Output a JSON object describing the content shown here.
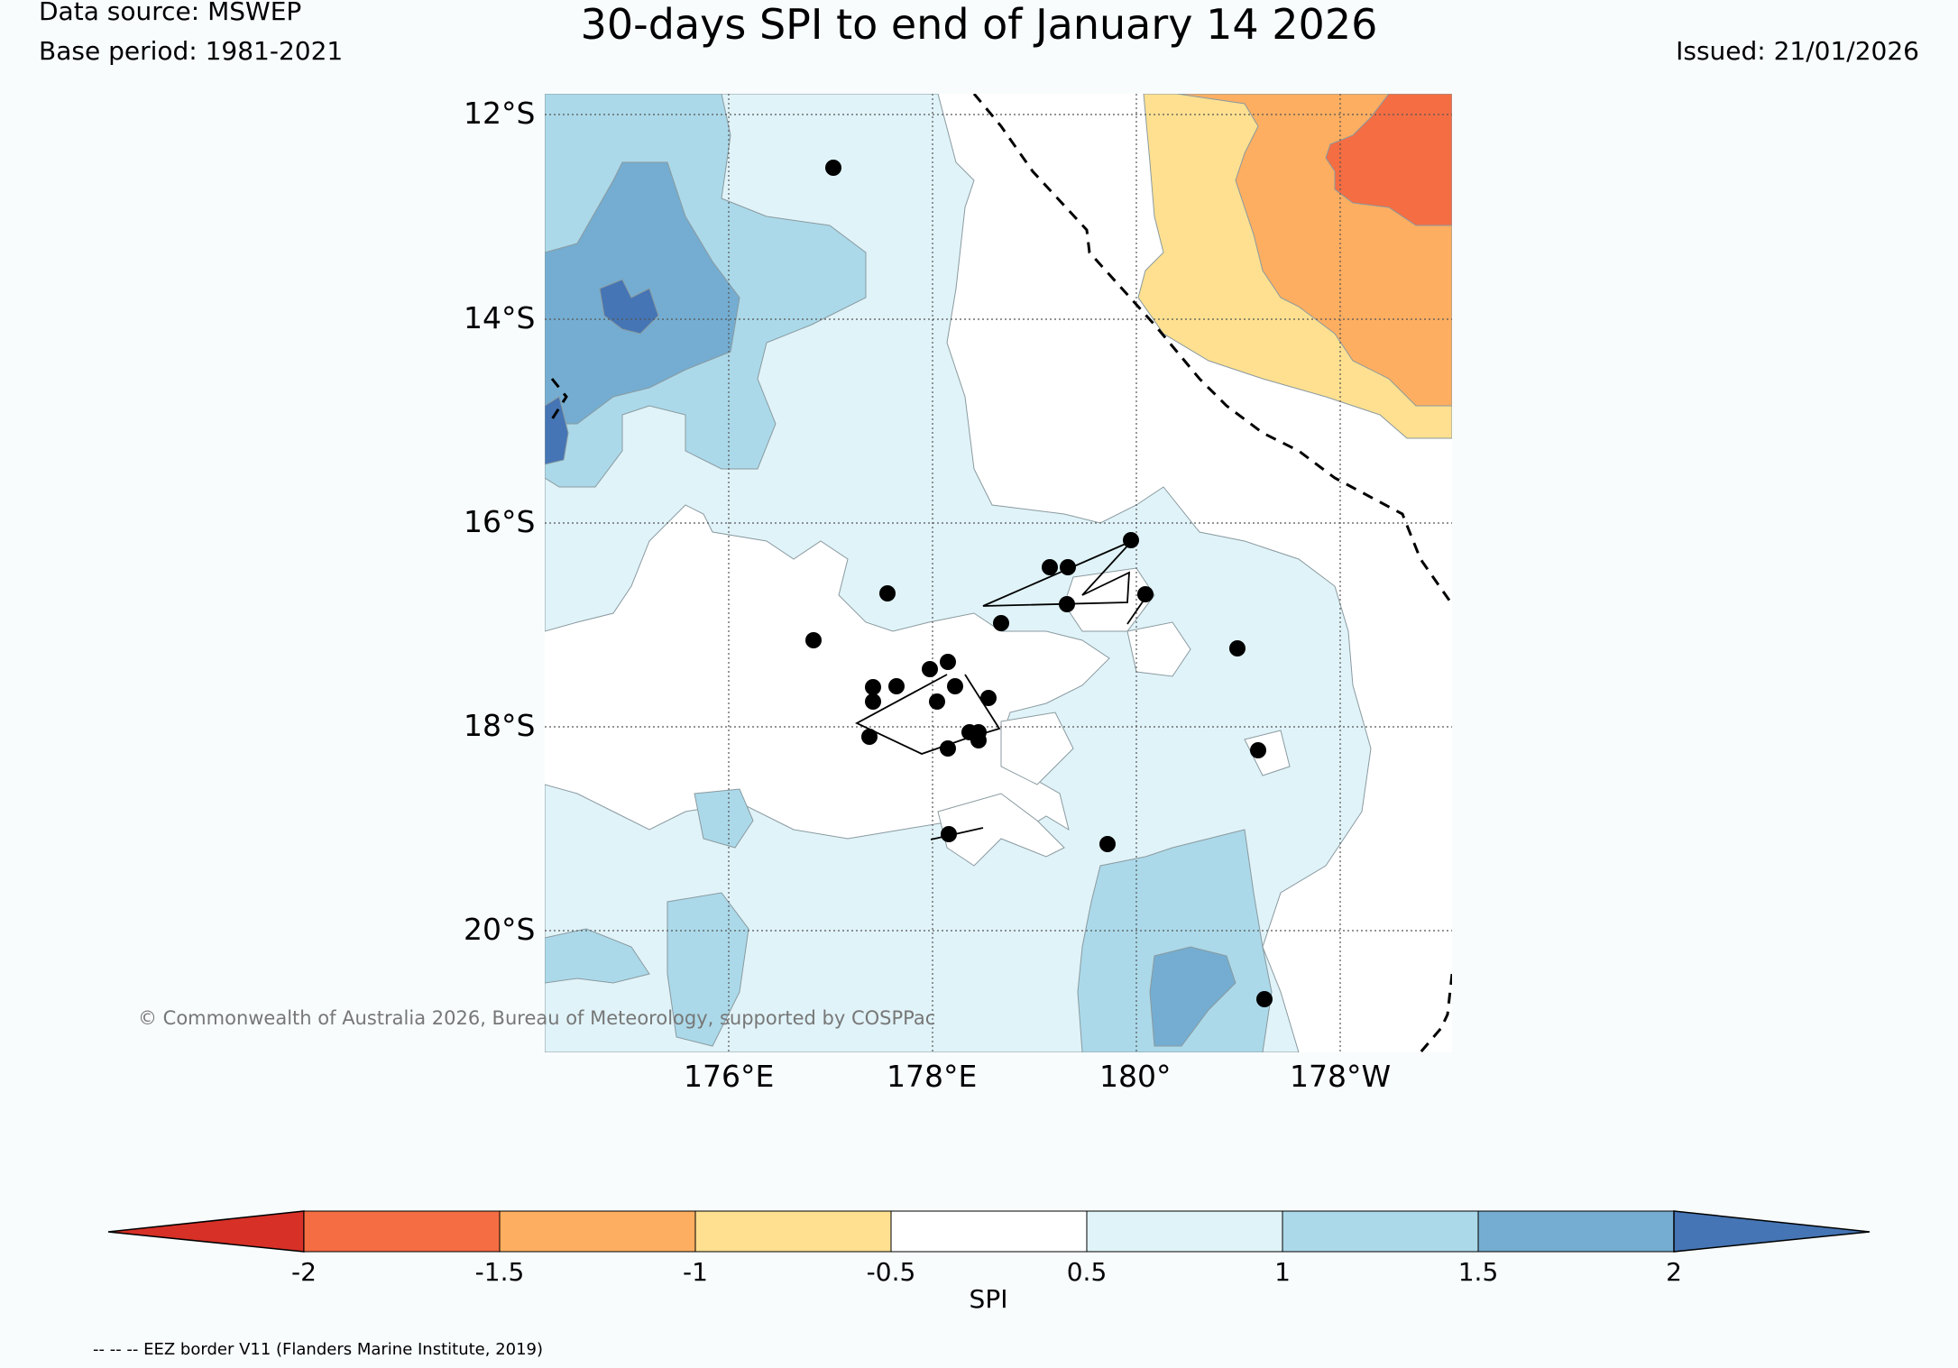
{
  "header": {
    "data_source": "Data source: MSWEP",
    "base_period": "Base period: 1981-2021",
    "title": "30-days SPI to end of January 14 2026",
    "issued": "Issued: 21/01/2026"
  },
  "map": {
    "lat_labels": [
      "12°S",
      "14°S",
      "16°S",
      "18°S",
      "20°S"
    ],
    "lon_labels": [
      "176°E",
      "178°E",
      "180°",
      "178°W"
    ],
    "copyright": "© Commonwealth of Australia 2026, Bureau of Meteorology, supported by COSPPac"
  },
  "colorbar": {
    "ticks": [
      "-2",
      "-1.5",
      "-1",
      "-0.5",
      "0.5",
      "1",
      "1.5",
      "2"
    ],
    "label": "SPI",
    "colors": {
      "below_min": "#d73027",
      "bins": [
        "#f46d43",
        "#fdae61",
        "#fee090",
        "#ffffff",
        "#e0f3f8",
        "#abd9e9",
        "#74add1"
      ],
      "above_max": "#4575b4"
    }
  },
  "footer": {
    "eez_note": "-- -- -- EEZ border V11 (Flanders Marine Institute, 2019)"
  }
}
